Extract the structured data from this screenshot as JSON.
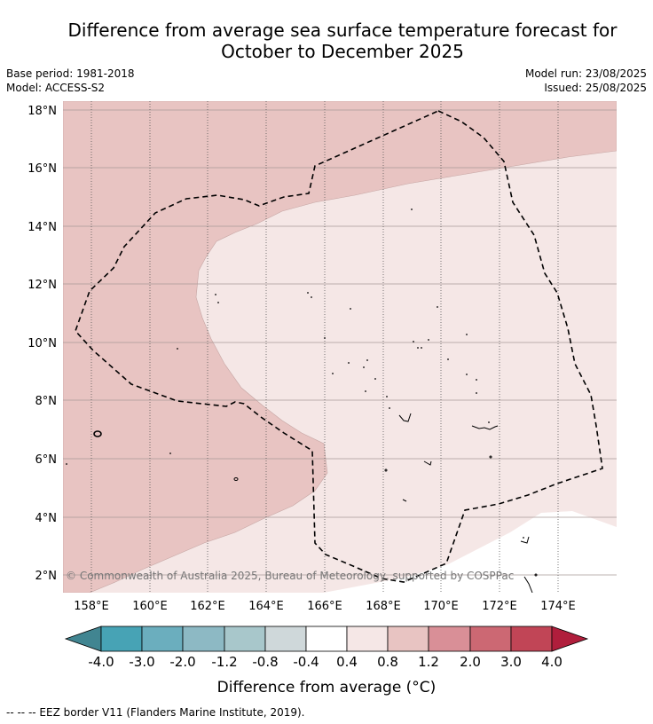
{
  "header": {
    "title_line1": "Difference from average sea surface temperature forecast for",
    "title_line2": "October to December 2025",
    "base_period": "Base period: 1981-2018",
    "model": "Model: ACCESS-S2",
    "model_run": "Model run: 23/08/2025",
    "issued": "Issued: 25/08/2025"
  },
  "map": {
    "lat_labels": [
      "18°N",
      "16°N",
      "14°N",
      "12°N",
      "10°N",
      "8°N",
      "6°N",
      "4°N",
      "2°N"
    ],
    "lon_labels": [
      "158°E",
      "160°E",
      "162°E",
      "164°E",
      "166°E",
      "168°E",
      "170°E",
      "172°E",
      "174°E"
    ],
    "copyright": "© Commonwealth of Australia 2025, Bureau of Meteorology, supported by COSPPac",
    "fill_colors": {
      "band_0_8_to_1_2": "#e8c4c2",
      "band_0_4_to_0_8": "#f5e7e6",
      "band_neutral": "#ffffff"
    }
  },
  "colorbar": {
    "labels": [
      "-4.0",
      "-3.0",
      "-2.0",
      "-1.2",
      "-0.8",
      "-0.4",
      "0.4",
      "0.8",
      "1.2",
      "2.0",
      "3.0",
      "4.0"
    ],
    "colors": [
      "#418591",
      "#47a3b5",
      "#6baebe",
      "#8db9c4",
      "#a8c7cb",
      "#cfd8da",
      "#ffffff",
      "#f5e7e6",
      "#e8c4c2",
      "#d98f97",
      "#cc6873",
      "#c14556",
      "#b01e3c"
    ],
    "title": "Difference from average (°C)"
  },
  "footer": {
    "legend": "--  --  -- EEZ border V11 (Flanders Marine Institute, 2019)."
  }
}
